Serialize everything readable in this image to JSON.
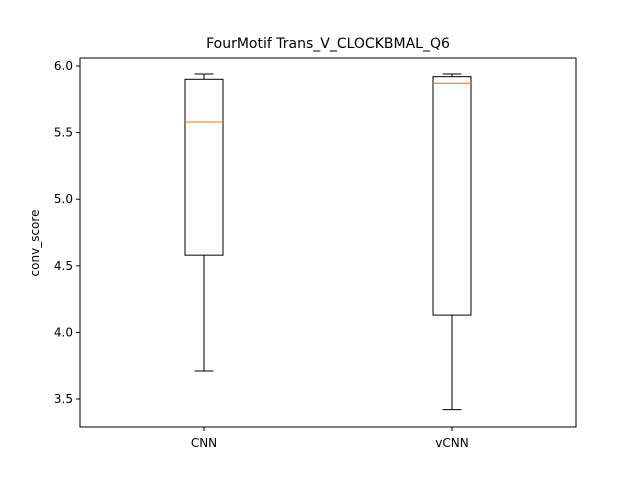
{
  "chart_data": {
    "type": "box",
    "title": "FourMotif Trans_V_CLOCKBMAL_Q6",
    "xlabel": "",
    "ylabel": "conv_score",
    "categories": [
      "CNN",
      "vCNN"
    ],
    "boxes": [
      {
        "name": "CNN",
        "whisker_low": 3.71,
        "q1": 4.58,
        "median": 5.58,
        "q3": 5.9,
        "whisker_high": 5.94
      },
      {
        "name": "vCNN",
        "whisker_low": 3.42,
        "q1": 4.13,
        "median": 5.87,
        "q3": 5.92,
        "whisker_high": 5.94
      }
    ],
    "ylim": [
      3.29,
      6.06
    ],
    "yticks": [
      3.5,
      4.0,
      4.5,
      5.0,
      5.5,
      6.0
    ],
    "ytick_labels": [
      "3.5",
      "4.0",
      "4.5",
      "5.0",
      "5.5",
      "6.0"
    ],
    "grid": false,
    "colors": {
      "box": "#000000",
      "median": "#ff7f0e",
      "background": "#ffffff"
    }
  }
}
